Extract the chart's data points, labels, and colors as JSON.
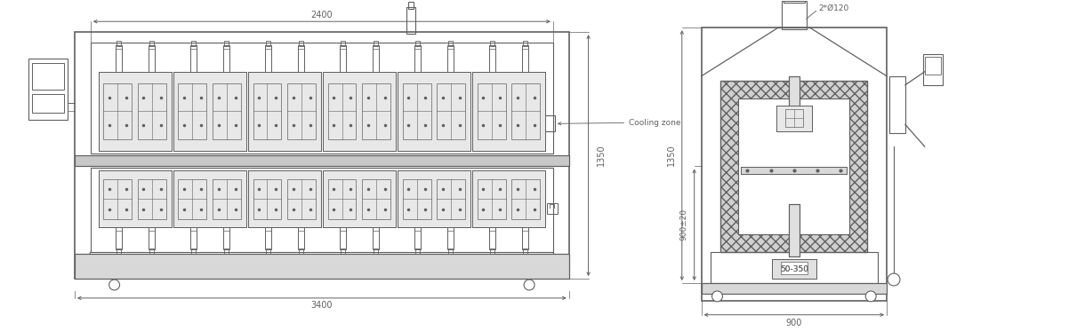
{
  "bg_color": "#ffffff",
  "lc": "#606060",
  "dc": "#606060",
  "tc": "#606060",
  "fig_width": 12.11,
  "fig_height": 3.73,
  "dpi": 100,
  "side": {
    "ML": 80,
    "MR": 640,
    "MT": 35,
    "MB": 315,
    "label_2400": "2400",
    "label_3400": "3400",
    "label_1350": "1350",
    "label_cooling": "Cooling zone"
  },
  "front": {
    "FL": 790,
    "FR": 1000,
    "FT": 30,
    "FB": 340,
    "label_2star120": "2*Ø120",
    "label_1350": "1350",
    "label_900pm20": "900±20",
    "label_50_350": "50-350",
    "label_900": "900"
  }
}
